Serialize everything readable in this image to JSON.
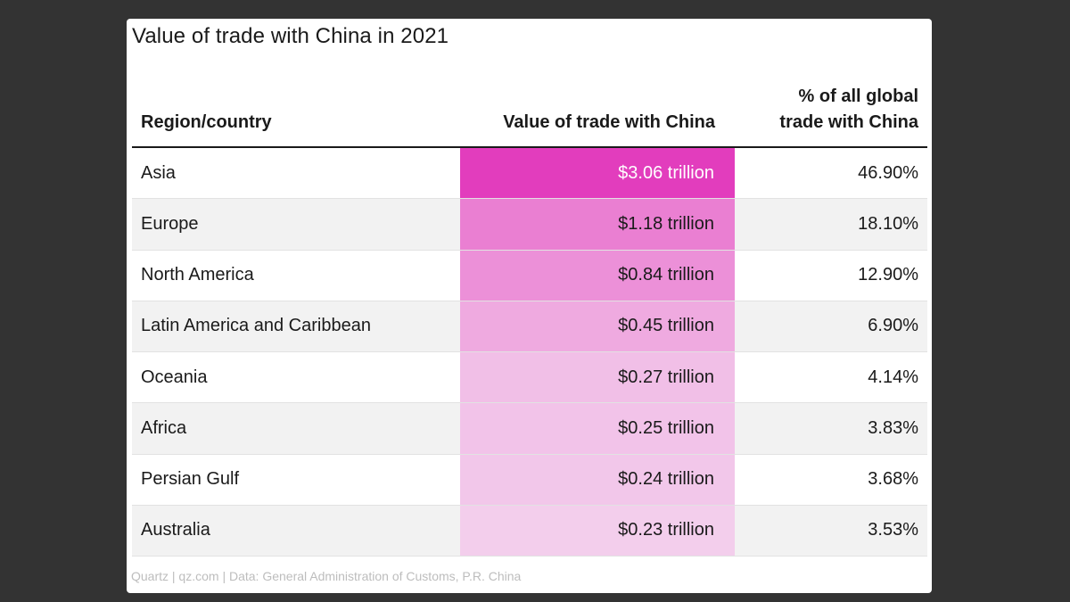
{
  "chart_data": {
    "type": "table",
    "title": "Value of trade with China in 2021",
    "columns": [
      "Region/country",
      "Value of trade with China",
      "% of all global trade with China"
    ],
    "column_header_lines": {
      "region": [
        "Region/country"
      ],
      "value": [
        "Value of trade with China"
      ],
      "pct": [
        "% of all global",
        "trade with China"
      ]
    },
    "rows": [
      {
        "region": "Asia",
        "value_label": "$3.06 trillion",
        "value": 3.06,
        "pct": "46.90%"
      },
      {
        "region": "Europe",
        "value_label": "$1.18 trillion",
        "value": 1.18,
        "pct": "18.10%"
      },
      {
        "region": "North America",
        "value_label": "$0.84 trillion",
        "value": 0.84,
        "pct": "12.90%"
      },
      {
        "region": "Latin America and Caribbean",
        "value_label": "$0.45 trillion",
        "value": 0.45,
        "pct": "6.90%"
      },
      {
        "region": "Oceania",
        "value_label": "$0.27 trillion",
        "value": 0.27,
        "pct": "4.14%"
      },
      {
        "region": "Africa",
        "value_label": "$0.25 trillion",
        "value": 0.25,
        "pct": "3.83%"
      },
      {
        "region": "Persian Gulf",
        "value_label": "$0.24 trillion",
        "value": 0.24,
        "pct": "3.68%"
      },
      {
        "region": "Australia",
        "value_label": "$0.23 trillion",
        "value": 0.23,
        "pct": "3.53%"
      }
    ],
    "heat_scale": {
      "min": 0.23,
      "max": 3.06,
      "low_color": "#f3ceec",
      "high_color": "#e23dbd",
      "top_text_color": "#ffffff"
    },
    "source": "Quartz | qz.com | Data: General Administration of Customs, P.R. China"
  }
}
